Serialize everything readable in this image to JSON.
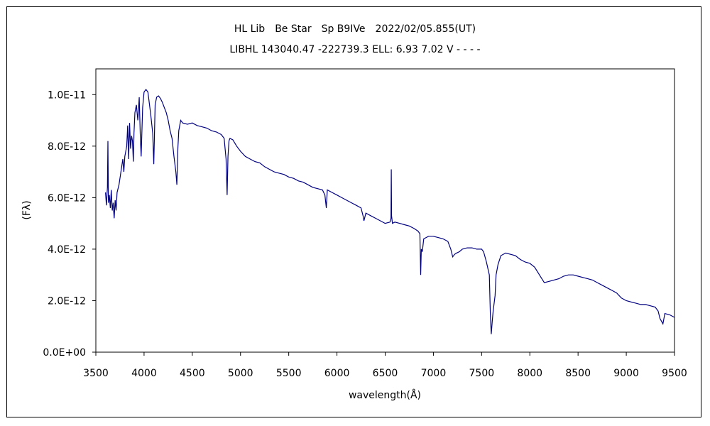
{
  "chart_data": {
    "type": "line",
    "title": "HL Lib　Be Star　Sp B9IVe　2022/02/05.855(UT)",
    "subtitle": "LIBHL 143040.47 -222739.3 ELL: 6.93 7.02 V - - - -",
    "xlabel": "wavelength(Å)",
    "ylabel": "(Fλ)",
    "xlim": [
      3500,
      9500
    ],
    "ylim": [
      0,
      1.1e-11
    ],
    "x_ticks": [
      3500,
      4000,
      4500,
      5000,
      5500,
      6000,
      6500,
      7000,
      7500,
      8000,
      8500,
      9000,
      9500
    ],
    "x_tick_labels": [
      "3500",
      "4000",
      "4500",
      "5000",
      "5500",
      "6000",
      "6500",
      "7000",
      "7500",
      "8000",
      "8500",
      "9000",
      "9500"
    ],
    "y_ticks": [
      0,
      2e-12,
      4e-12,
      6e-12,
      8e-12,
      1e-11
    ],
    "y_tick_labels": [
      "0.0E+00",
      "2.0E-12",
      "4.0E-12",
      "6.0E-12",
      "8.0E-12",
      "1.0E-11"
    ],
    "grid": false,
    "line_color": "#00007f",
    "series": [
      {
        "x": [
          3600,
          3610,
          3620,
          3625,
          3630,
          3640,
          3650,
          3660,
          3670,
          3680,
          3690,
          3700,
          3710,
          3720,
          3740,
          3760,
          3780,
          3790,
          3800,
          3820,
          3830,
          3840,
          3850,
          3860,
          3870,
          3880,
          3889,
          3895,
          3905,
          3920,
          3935,
          3950,
          3960,
          3970,
          3985,
          4000,
          4020,
          4040,
          4050,
          4070,
          4090,
          4101,
          4115,
          4130,
          4150,
          4170,
          4190,
          4210,
          4230,
          4250,
          4270,
          4290,
          4310,
          4330,
          4340,
          4350,
          4360,
          4380,
          4400,
          4450,
          4500,
          4550,
          4600,
          4650,
          4700,
          4750,
          4800,
          4830,
          4850,
          4861,
          4870,
          4880,
          4890,
          4920,
          4960,
          5000,
          5050,
          5100,
          5150,
          5200,
          5250,
          5300,
          5350,
          5400,
          5450,
          5500,
          5550,
          5600,
          5650,
          5700,
          5750,
          5800,
          5850,
          5875,
          5890,
          5900,
          5950,
          6000,
          6050,
          6100,
          6150,
          6200,
          6250,
          6270,
          6280,
          6300,
          6350,
          6400,
          6450,
          6500,
          6550,
          6560,
          6563,
          6566,
          6575,
          6600,
          6650,
          6700,
          6750,
          6800,
          6840,
          6860,
          6868,
          6875,
          6885,
          6900,
          6950,
          7000,
          7050,
          7100,
          7150,
          7180,
          7200,
          7220,
          7240,
          7270,
          7300,
          7350,
          7400,
          7450,
          7500,
          7520,
          7550,
          7580,
          7590,
          7600,
          7610,
          7620,
          7640,
          7650,
          7670,
          7700,
          7750,
          7800,
          7850,
          7900,
          7950,
          8000,
          8050,
          8100,
          8150,
          8200,
          8250,
          8300,
          8350,
          8400,
          8450,
          8500,
          8550,
          8600,
          8650,
          8700,
          8750,
          8800,
          8850,
          8900,
          8950,
          9000,
          9050,
          9100,
          9150,
          9200,
          9250,
          9300,
          9330,
          9350,
          9380,
          9400,
          9450,
          9500
        ],
        "y": [
          6.2e-12,
          5.7e-12,
          6.4e-12,
          8.2e-12,
          5.8e-12,
          6.1e-12,
          5.6e-12,
          6.3e-12,
          5.5e-12,
          5.8e-12,
          5.2e-12,
          5.9e-12,
          5.5e-12,
          6.2e-12,
          6.5e-12,
          7e-12,
          7.5e-12,
          7e-12,
          7.6e-12,
          8e-12,
          8.8e-12,
          7.5e-12,
          8.9e-12,
          7.9e-12,
          8.4e-12,
          8.2e-12,
          7.4e-12,
          8.5e-12,
          9.3e-12,
          9.6e-12,
          9e-12,
          9.9e-12,
          8.5e-12,
          7.6e-12,
          9.5e-12,
          1.01e-11,
          1.02e-11,
          1.01e-11,
          9.8e-12,
          9.2e-12,
          8.5e-12,
          7.3e-12,
          9.6e-12,
          9.9e-12,
          9.95e-12,
          9.85e-12,
          9.7e-12,
          9.5e-12,
          9.3e-12,
          9e-12,
          8.6e-12,
          8.3e-12,
          7.6e-12,
          7e-12,
          6.5e-12,
          7.9e-12,
          8.6e-12,
          9e-12,
          8.9e-12,
          8.85e-12,
          8.9e-12,
          8.8e-12,
          8.75e-12,
          8.7e-12,
          8.6e-12,
          8.55e-12,
          8.45e-12,
          8.3e-12,
          7.5e-12,
          6.1e-12,
          7.6e-12,
          8.2e-12,
          8.3e-12,
          8.25e-12,
          8e-12,
          7.8e-12,
          7.6e-12,
          7.5e-12,
          7.4e-12,
          7.35e-12,
          7.2e-12,
          7.1e-12,
          7e-12,
          6.95e-12,
          6.9e-12,
          6.8e-12,
          6.75e-12,
          6.65e-12,
          6.6e-12,
          6.5e-12,
          6.4e-12,
          6.35e-12,
          6.3e-12,
          6.1e-12,
          5.6e-12,
          6.3e-12,
          6.2e-12,
          6.1e-12,
          6e-12,
          5.9e-12,
          5.8e-12,
          5.7e-12,
          5.6e-12,
          5.3e-12,
          5.1e-12,
          5.4e-12,
          5.3e-12,
          5.2e-12,
          5.1e-12,
          5e-12,
          5.05e-12,
          5.2e-12,
          7.1e-12,
          5.3e-12,
          5e-12,
          5.05e-12,
          5e-12,
          4.95e-12,
          4.9e-12,
          4.8e-12,
          4.7e-12,
          4.6e-12,
          3e-12,
          4e-12,
          3.9e-12,
          4.4e-12,
          4.5e-12,
          4.5e-12,
          4.45e-12,
          4.4e-12,
          4.3e-12,
          4e-12,
          3.7e-12,
          3.8e-12,
          3.85e-12,
          3.9e-12,
          4e-12,
          4.05e-12,
          4.05e-12,
          4e-12,
          4e-12,
          3.9e-12,
          3.5e-12,
          3e-12,
          1.5e-12,
          7e-13,
          1.2e-12,
          1.6e-12,
          2.2e-12,
          3e-12,
          3.4e-12,
          3.75e-12,
          3.85e-12,
          3.8e-12,
          3.75e-12,
          3.6e-12,
          3.5e-12,
          3.45e-12,
          3.3e-12,
          3e-12,
          2.7e-12,
          2.75e-12,
          2.8e-12,
          2.85e-12,
          2.95e-12,
          3e-12,
          3e-12,
          2.95e-12,
          2.9e-12,
          2.85e-12,
          2.8e-12,
          2.7e-12,
          2.6e-12,
          2.5e-12,
          2.4e-12,
          2.3e-12,
          2.1e-12,
          2e-12,
          1.95e-12,
          1.9e-12,
          1.85e-12,
          1.85e-12,
          1.8e-12,
          1.75e-12,
          1.6e-12,
          1.3e-12,
          1.1e-12,
          1.5e-12,
          1.45e-12,
          1.35e-12
        ]
      }
    ]
  }
}
